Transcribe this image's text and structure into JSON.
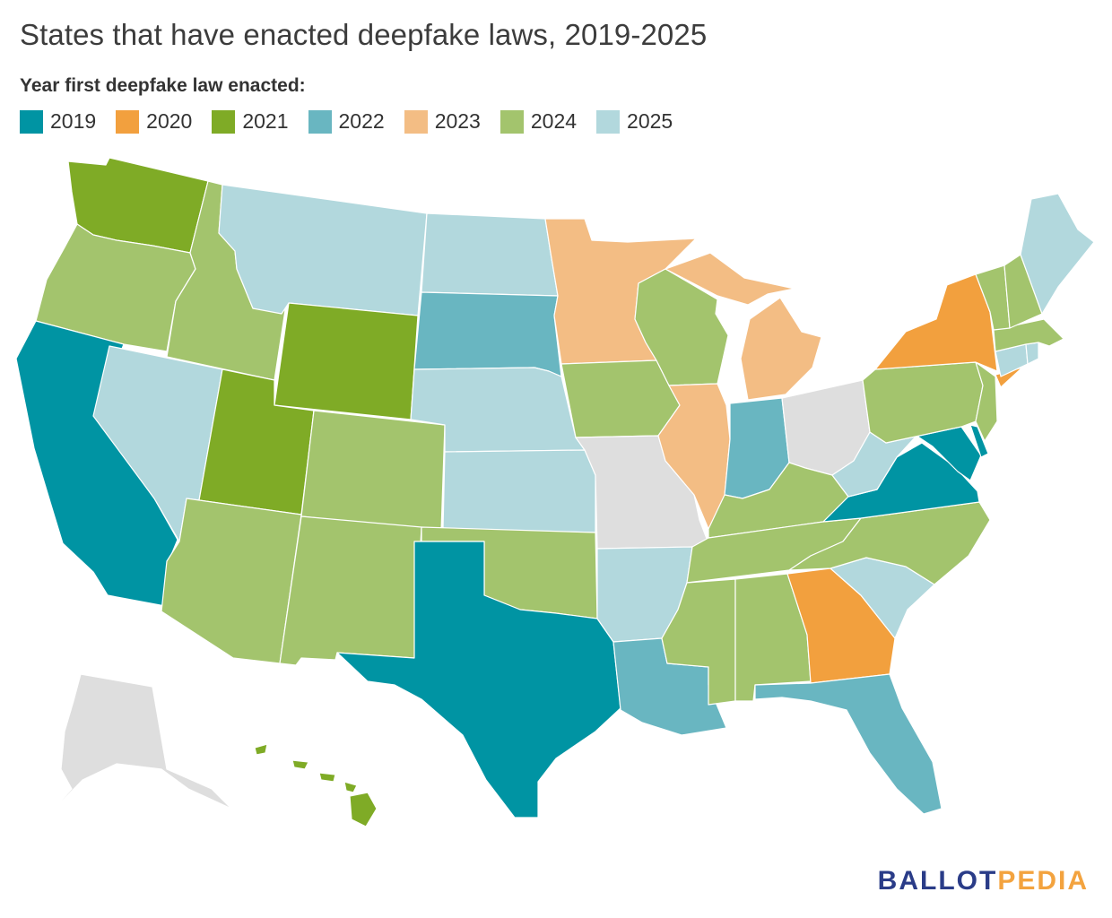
{
  "title": "States that have enacted deepfake laws, 2019-2025",
  "legend": {
    "title": "Year first deepfake law enacted:",
    "items": [
      {
        "label": "2019",
        "color": "#0094a3"
      },
      {
        "label": "2020",
        "color": "#f2a03e"
      },
      {
        "label": "2021",
        "color": "#7fab26"
      },
      {
        "label": "2022",
        "color": "#69b6c1"
      },
      {
        "label": "2023",
        "color": "#f3bd84"
      },
      {
        "label": "2024",
        "color": "#a3c46d"
      },
      {
        "label": "2025",
        "color": "#b2d8dd"
      }
    ],
    "none_color": "#dedede"
  },
  "states": {
    "WA": "2021",
    "OR": "2024",
    "CA": "2019",
    "NV": "2025",
    "ID": "2024",
    "MT": "2025",
    "WY": "2021",
    "UT": "2021",
    "AZ": "2024",
    "CO": "2024",
    "NM": "2024",
    "ND": "2025",
    "SD": "2022",
    "NE": "2025",
    "KS": "2025",
    "OK": "2024",
    "TX": "2019",
    "MN": "2023",
    "IA": "2024",
    "MO": "",
    "AR": "2025",
    "LA": "2022",
    "WI": "2024",
    "IL": "2023",
    "MI": "2023",
    "IN": "2022",
    "OH": "",
    "KY": "2024",
    "TN": "2024",
    "MS": "2024",
    "AL": "2024",
    "GA": "2020",
    "FL": "2022",
    "SC": "2025",
    "NC": "2024",
    "VA": "2019",
    "WV": "2025",
    "MD": "2019",
    "DE": "2019",
    "PA": "2024",
    "NJ": "2024",
    "NY": "2020",
    "CT": "2025",
    "RI": "2025",
    "MA": "2024",
    "VT": "2024",
    "NH": "2024",
    "ME": "2025",
    "AK": "",
    "HI": "2021"
  },
  "logo": {
    "part1": "BALLOT",
    "part2": "PEDIA"
  }
}
